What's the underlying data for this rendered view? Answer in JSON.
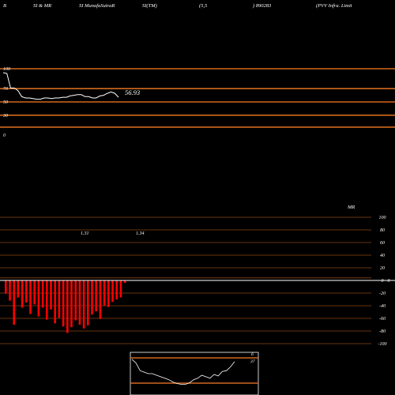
{
  "header": [
    "B",
    "SI & MR",
    "SI MunafaSutraR",
    "SI(TM)",
    "(5,5",
    ") 890283",
    "(PVV Infra. Limit"
  ],
  "colors": {
    "background": "#000000",
    "line": "#ffffff",
    "level": "#d2691e",
    "bar": "#ff0000",
    "zero": "#ffffff",
    "grid": "#8b4513"
  },
  "chart_data": [
    {
      "type": "line",
      "name": "rsi-panel",
      "levels": [
        100,
        70,
        50,
        30
      ],
      "ylim": [
        0,
        100
      ],
      "ticks": [
        "100",
        "70",
        "50",
        "30",
        "0"
      ],
      "last_value_label": "56.93",
      "values": [
        94,
        93,
        71,
        71,
        67,
        58,
        56,
        56,
        55,
        54,
        54,
        56,
        56,
        55,
        56,
        56,
        57,
        57,
        59,
        60,
        61,
        61,
        58,
        58,
        56,
        56,
        59,
        60,
        63,
        65,
        63,
        57
      ]
    },
    {
      "type": "bar",
      "name": "mrsi-panel",
      "label": "MR",
      "ylim": [
        -100,
        100
      ],
      "ticks": [
        "100",
        "80",
        "60",
        "40",
        "20",
        "0",
        "0",
        "-20",
        "-40",
        "-60",
        "-80",
        "-100"
      ],
      "annotations": [
        "1.31",
        "1.34"
      ],
      "values": [
        -21,
        -32,
        -70,
        -27,
        -43,
        -35,
        -53,
        -38,
        -57,
        -43,
        -62,
        -46,
        -68,
        -59,
        -73,
        -83,
        -74,
        -63,
        -70,
        -76,
        -71,
        -54,
        -49,
        -61,
        -40,
        -42,
        -34,
        -30,
        -27,
        -4
      ]
    },
    {
      "type": "line",
      "name": "mini-panel",
      "levels": [
        "6",
        "37"
      ],
      "values": [
        45,
        40,
        30,
        28,
        26,
        26,
        24,
        22,
        20,
        18,
        15,
        13,
        12,
        12,
        14,
        18,
        20,
        24,
        22,
        20,
        25,
        23,
        29,
        30,
        35,
        42
      ]
    }
  ]
}
